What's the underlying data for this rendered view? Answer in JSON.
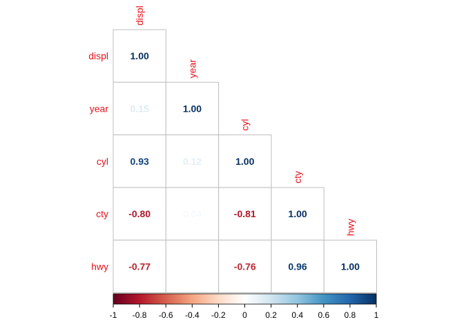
{
  "chart_data": {
    "type": "heatmap",
    "layout": "lower-triangle correlation matrix",
    "variables": [
      "displ",
      "year",
      "cyl",
      "cty",
      "hwy"
    ],
    "matrix": [
      [
        1.0
      ],
      [
        0.15,
        1.0
      ],
      [
        0.93,
        0.12,
        1.0
      ],
      [
        -0.8,
        0.04,
        -0.81,
        1.0
      ],
      [
        -0.77,
        0.0,
        -0.76,
        0.96,
        1.0
      ]
    ],
    "labels": [
      [
        "1.00"
      ],
      [
        "0.15",
        "1.00"
      ],
      [
        "0.93",
        "0.12",
        "1.00"
      ],
      [
        "-0.80",
        "0.04",
        "-0.81",
        "1.00"
      ],
      [
        "-0.77",
        "",
        "-0.76",
        "0.96",
        "1.00"
      ]
    ],
    "colorbar": {
      "range": [
        -1,
        1
      ],
      "ticks": [
        "-1",
        "-0.8",
        "-0.6",
        "-0.4",
        "-0.2",
        "0",
        "0.2",
        "0.4",
        "0.6",
        "0.8",
        "1"
      ],
      "placement": "bottom",
      "colors": [
        "#67001f",
        "#b2182b",
        "#d6604d",
        "#f4a582",
        "#fddbc7",
        "#ffffff",
        "#d1e5f0",
        "#92c5de",
        "#4393c3",
        "#2166ac",
        "#053061"
      ]
    },
    "label_color": "#e8121b",
    "grid": true
  }
}
